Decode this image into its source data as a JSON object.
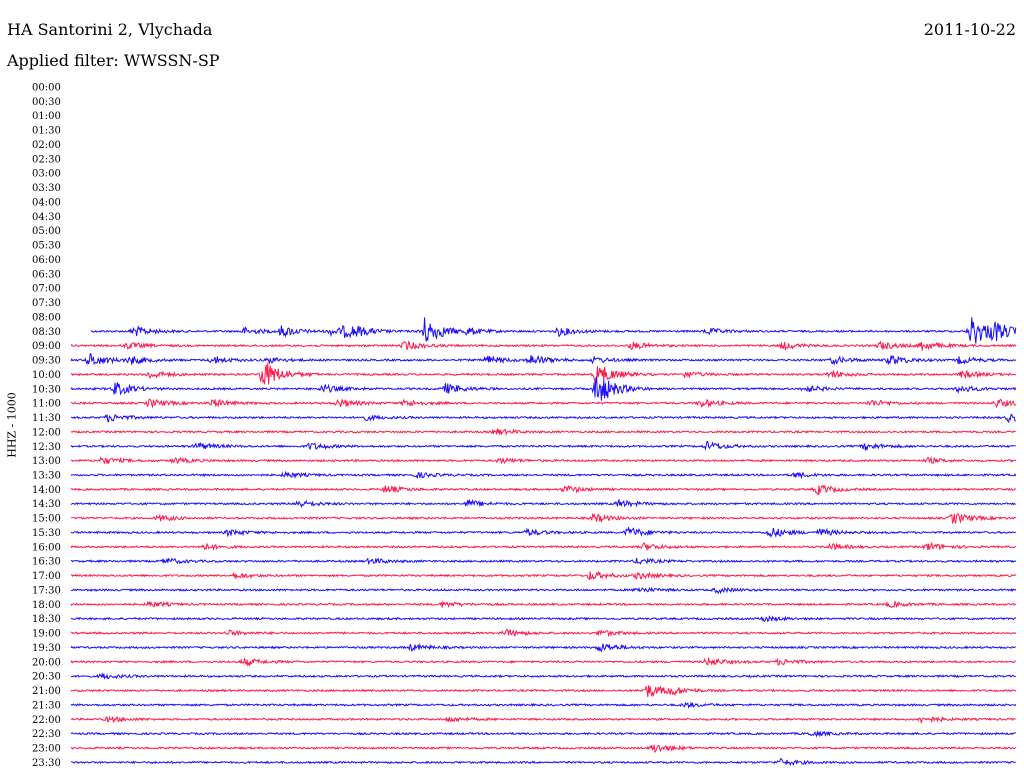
{
  "header": {
    "station": "HA Santorini 2, Vlychada",
    "date": "2011-10-22",
    "filter": "Applied filter: WWSSN-SP"
  },
  "colors": {
    "red": "#ff1a4a",
    "blue": "#1a0dff"
  },
  "chart_data": {
    "type": "line",
    "title": "HA Santorini 2, Vlychada",
    "subtitle": "Applied filter: WWSSN-SP",
    "ylabel": "HHZ - 1000",
    "trace_start_time": "08:36",
    "time_labels": [
      "00:00",
      "00:30",
      "01:00",
      "01:30",
      "02:00",
      "02:30",
      "03:00",
      "03:30",
      "04:00",
      "04:30",
      "05:00",
      "05:30",
      "06:00",
      "06:30",
      "07:00",
      "07:30",
      "08:00",
      "08:30",
      "09:00",
      "09:30",
      "10:00",
      "10:30",
      "11:00",
      "11:30",
      "12:00",
      "12:30",
      "13:00",
      "13:30",
      "14:00",
      "14:30",
      "15:00",
      "15:30",
      "16:00",
      "16:30",
      "17:00",
      "17:30",
      "18:00",
      "18:30",
      "19:00",
      "19:30",
      "20:00",
      "20:30",
      "21:00",
      "21:30",
      "22:00",
      "22:30",
      "23:00",
      "23:30"
    ],
    "row_colors": [
      "red",
      "blue"
    ],
    "events": [
      {
        "row": "08:30",
        "minute": 20,
        "amp": 1.2
      },
      {
        "row": "08:30",
        "minute": 55,
        "amp": 0.8
      },
      {
        "row": "08:30",
        "minute": 67,
        "amp": 1.2
      },
      {
        "row": "08:30",
        "minute": 83,
        "amp": 0.9
      },
      {
        "row": "08:30",
        "minute": 87,
        "amp": 1.0
      },
      {
        "row": "08:30",
        "minute": 90,
        "amp": 0.7
      },
      {
        "row": "08:30",
        "minute": 112,
        "amp": 3.5
      },
      {
        "row": "08:30",
        "minute": 126,
        "amp": 0.7
      },
      {
        "row": "08:30",
        "minute": 155,
        "amp": 1.0
      },
      {
        "row": "08:30",
        "minute": 202,
        "amp": 0.7
      },
      {
        "row": "08:30",
        "minute": 286,
        "amp": 3.8
      },
      {
        "row": "08:30",
        "minute": 293,
        "amp": 1.8
      },
      {
        "row": "08:30",
        "minute": 301,
        "amp": 1.0
      },
      {
        "row": "09:00",
        "minute": 18,
        "amp": 0.7
      },
      {
        "row": "09:00",
        "minute": 106,
        "amp": 1.0
      },
      {
        "row": "09:00",
        "minute": 178,
        "amp": 0.8
      },
      {
        "row": "09:00",
        "minute": 226,
        "amp": 0.8
      },
      {
        "row": "09:00",
        "minute": 257,
        "amp": 0.9
      },
      {
        "row": "09:00",
        "minute": 270,
        "amp": 1.1
      },
      {
        "row": "09:30",
        "minute": 6,
        "amp": 1.6
      },
      {
        "row": "09:30",
        "minute": 19,
        "amp": 0.9
      },
      {
        "row": "09:30",
        "minute": 45,
        "amp": 0.9
      },
      {
        "row": "09:30",
        "minute": 63,
        "amp": 0.6
      },
      {
        "row": "09:30",
        "minute": 132,
        "amp": 1.0
      },
      {
        "row": "09:30",
        "minute": 146,
        "amp": 1.2
      },
      {
        "row": "09:30",
        "minute": 166,
        "amp": 0.7
      },
      {
        "row": "09:30",
        "minute": 242,
        "amp": 0.8
      },
      {
        "row": "09:30",
        "minute": 260,
        "amp": 1.2
      },
      {
        "row": "09:30",
        "minute": 282,
        "amp": 0.8
      },
      {
        "row": "10:00",
        "minute": 25,
        "amp": 0.9
      },
      {
        "row": "10:00",
        "minute": 61,
        "amp": 3.5
      },
      {
        "row": "10:00",
        "minute": 167,
        "amp": 2.6
      },
      {
        "row": "10:00",
        "minute": 195,
        "amp": 0.7
      },
      {
        "row": "10:00",
        "minute": 241,
        "amp": 0.8
      },
      {
        "row": "10:00",
        "minute": 283,
        "amp": 0.8
      },
      {
        "row": "10:30",
        "minute": 14,
        "amp": 1.6
      },
      {
        "row": "10:30",
        "minute": 80,
        "amp": 0.9
      },
      {
        "row": "10:30",
        "minute": 119,
        "amp": 1.2
      },
      {
        "row": "10:30",
        "minute": 167,
        "amp": 4.0
      },
      {
        "row": "10:30",
        "minute": 233,
        "amp": 0.8
      },
      {
        "row": "10:30",
        "minute": 282,
        "amp": 0.8
      },
      {
        "row": "11:00",
        "minute": 25,
        "amp": 0.9
      },
      {
        "row": "11:00",
        "minute": 45,
        "amp": 0.9
      },
      {
        "row": "11:00",
        "minute": 85,
        "amp": 1.0
      },
      {
        "row": "11:00",
        "minute": 106,
        "amp": 0.8
      },
      {
        "row": "11:00",
        "minute": 200,
        "amp": 0.9
      },
      {
        "row": "11:00",
        "minute": 254,
        "amp": 0.8
      },
      {
        "row": "11:00",
        "minute": 294,
        "amp": 0.9
      },
      {
        "row": "11:30",
        "minute": 12,
        "amp": 0.9
      },
      {
        "row": "11:30",
        "minute": 93,
        "amp": 0.6
      },
      {
        "row": "11:30",
        "minute": 298,
        "amp": 1.0
      },
      {
        "row": "12:00",
        "minute": 135,
        "amp": 0.7
      },
      {
        "row": "12:30",
        "minute": 40,
        "amp": 0.8
      },
      {
        "row": "12:30",
        "minute": 76,
        "amp": 0.8
      },
      {
        "row": "12:30",
        "minute": 202,
        "amp": 1.0
      },
      {
        "row": "12:30",
        "minute": 252,
        "amp": 0.8
      },
      {
        "row": "13:00",
        "minute": 10,
        "amp": 0.8
      },
      {
        "row": "13:00",
        "minute": 33,
        "amp": 0.6
      },
      {
        "row": "13:00",
        "minute": 136,
        "amp": 0.6
      },
      {
        "row": "13:00",
        "minute": 272,
        "amp": 0.6
      },
      {
        "row": "13:30",
        "minute": 68,
        "amp": 0.6
      },
      {
        "row": "13:30",
        "minute": 110,
        "amp": 0.6
      },
      {
        "row": "13:30",
        "minute": 230,
        "amp": 0.6
      },
      {
        "row": "14:00",
        "minute": 100,
        "amp": 0.9
      },
      {
        "row": "14:00",
        "minute": 157,
        "amp": 0.8
      },
      {
        "row": "14:00",
        "minute": 237,
        "amp": 1.1
      },
      {
        "row": "14:30",
        "minute": 72,
        "amp": 0.8
      },
      {
        "row": "14:30",
        "minute": 126,
        "amp": 0.8
      },
      {
        "row": "14:30",
        "minute": 174,
        "amp": 0.8
      },
      {
        "row": "15:00",
        "minute": 28,
        "amp": 0.7
      },
      {
        "row": "15:00",
        "minute": 166,
        "amp": 0.9
      },
      {
        "row": "15:00",
        "minute": 280,
        "amp": 1.3
      },
      {
        "row": "15:30",
        "minute": 50,
        "amp": 0.7
      },
      {
        "row": "15:30",
        "minute": 145,
        "amp": 0.7
      },
      {
        "row": "15:30",
        "minute": 177,
        "amp": 1.2
      },
      {
        "row": "15:30",
        "minute": 222,
        "amp": 1.2
      },
      {
        "row": "15:30",
        "minute": 238,
        "amp": 0.8
      },
      {
        "row": "16:00",
        "minute": 42,
        "amp": 0.7
      },
      {
        "row": "16:00",
        "minute": 182,
        "amp": 0.8
      },
      {
        "row": "16:00",
        "minute": 241,
        "amp": 0.7
      },
      {
        "row": "16:00",
        "minute": 272,
        "amp": 0.9
      },
      {
        "row": "16:30",
        "minute": 30,
        "amp": 0.7
      },
      {
        "row": "16:30",
        "minute": 95,
        "amp": 0.7
      },
      {
        "row": "16:30",
        "minute": 180,
        "amp": 0.7
      },
      {
        "row": "17:00",
        "minute": 52,
        "amp": 0.6
      },
      {
        "row": "17:00",
        "minute": 165,
        "amp": 1.0
      },
      {
        "row": "17:00",
        "minute": 180,
        "amp": 0.7
      },
      {
        "row": "17:30",
        "minute": 180,
        "amp": 0.6
      },
      {
        "row": "17:30",
        "minute": 205,
        "amp": 0.6
      },
      {
        "row": "18:00",
        "minute": 25,
        "amp": 0.6
      },
      {
        "row": "18:00",
        "minute": 118,
        "amp": 0.6
      },
      {
        "row": "18:00",
        "minute": 260,
        "amp": 0.6
      },
      {
        "row": "18:30",
        "minute": 220,
        "amp": 0.6
      },
      {
        "row": "19:00",
        "minute": 50,
        "amp": 0.6
      },
      {
        "row": "19:00",
        "minute": 138,
        "amp": 0.8
      },
      {
        "row": "19:00",
        "minute": 168,
        "amp": 0.7
      },
      {
        "row": "19:30",
        "minute": 108,
        "amp": 0.7
      },
      {
        "row": "19:30",
        "minute": 168,
        "amp": 1.0
      },
      {
        "row": "20:00",
        "minute": 55,
        "amp": 0.8
      },
      {
        "row": "20:00",
        "minute": 202,
        "amp": 0.9
      },
      {
        "row": "20:00",
        "minute": 225,
        "amp": 0.7
      },
      {
        "row": "20:30",
        "minute": 10,
        "amp": 0.6
      },
      {
        "row": "21:00",
        "minute": 183,
        "amp": 1.6
      },
      {
        "row": "21:00",
        "minute": 190,
        "amp": 0.8
      },
      {
        "row": "21:30",
        "minute": 195,
        "amp": 0.5
      },
      {
        "row": "22:00",
        "minute": 12,
        "amp": 0.6
      },
      {
        "row": "22:00",
        "minute": 120,
        "amp": 0.6
      },
      {
        "row": "22:00",
        "minute": 270,
        "amp": 0.8
      },
      {
        "row": "22:30",
        "minute": 235,
        "amp": 0.5
      },
      {
        "row": "23:00",
        "minute": 185,
        "amp": 1.1
      },
      {
        "row": "23:30",
        "minute": 225,
        "amp": 0.8
      }
    ]
  }
}
